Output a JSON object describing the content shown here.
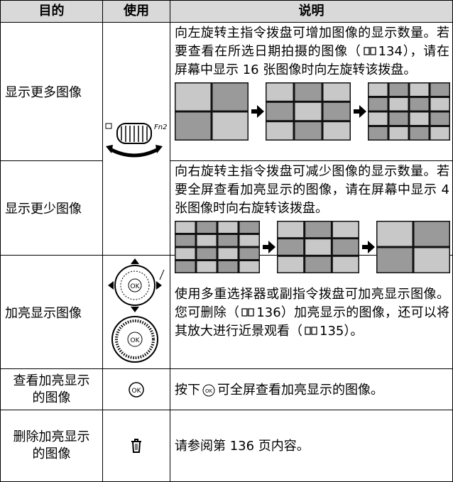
{
  "header": {
    "purpose": "目的",
    "use": "使用",
    "description": "说明"
  },
  "rows": [
    {
      "purpose": "显示更多图像",
      "description": [
        "向左旋转主指令拨盘可增加图像的显示数量。若要查看在所选日期拍摄的图像（",
        "134），请在屏幕中显示 16 张图像时向左旋转该拨盘。"
      ]
    },
    {
      "purpose": "显示更少图像",
      "description": [
        "向右旋转主指令拨盘可减少图像的显示数量。若要全屏查看加亮显示的图像，请在屏幕中显示 4 张图像时向右旋转该拨盘。"
      ]
    },
    {
      "purpose": "加亮显示图像",
      "description": [
        "使用多重选择器或副指令拨盘可加亮显示图像。您可删除（",
        "136）加亮显示的图像，还可以将其放大进行近景观看（",
        "135）。"
      ]
    },
    {
      "purpose": "查看加亮显示的图像",
      "description": [
        "按下",
        "可全屏查看加亮显示的图像。"
      ]
    },
    {
      "purpose": "删除加亮显示的图像",
      "description": [
        "请参阅第 136 页内容。"
      ]
    }
  ]
}
